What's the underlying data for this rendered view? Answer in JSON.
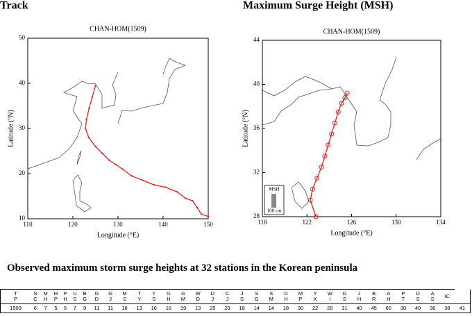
{
  "panels": [
    {
      "type": "track-map",
      "title": "Track",
      "subtitle": "CHAN-HOM(1509)",
      "xlabel": "Longitude (°E)",
      "ylabel": "Latitude (°N)",
      "xlim": [
        110,
        150
      ],
      "ylim": [
        10,
        50
      ],
      "xticks": [
        110,
        120,
        130,
        140,
        150
      ],
      "yticks": [
        10,
        20,
        30,
        40,
        50
      ],
      "marker": "dot",
      "color": "#e02020",
      "track": {
        "lon": [
          150,
          148.5,
          147.5,
          146.5,
          145,
          143,
          140.5,
          138,
          135.5,
          133,
          131,
          129.5,
          128,
          126.5,
          125,
          123.5,
          122.8,
          123,
          123.6,
          124.3,
          125
        ],
        "lat": [
          10.5,
          11,
          12.5,
          14,
          14.5,
          16,
          17,
          17.5,
          18.5,
          19.5,
          21,
          22,
          23,
          24.5,
          26,
          28,
          30,
          32,
          34.5,
          37,
          39.5
        ]
      }
    },
    {
      "type": "track-map",
      "title": "Maximum Surge Height (MSH)",
      "subtitle": "CHAN-HOM(1509)",
      "xlabel": "Longitude (°E)",
      "ylabel": "Latitude (°N)",
      "xlim": [
        118,
        134
      ],
      "ylim": [
        28,
        44
      ],
      "xticks": [
        118,
        122,
        126,
        130,
        134
      ],
      "yticks": [
        28,
        32,
        36,
        40,
        44
      ],
      "marker": "circle",
      "color": "#e02020",
      "track": {
        "lon": [
          122.8,
          122.3,
          122.5,
          122.9,
          123.3,
          123.6,
          123.9,
          124.2,
          124.5,
          124.8,
          125.1,
          125.4,
          125.6
        ],
        "lat": [
          28,
          29.5,
          30.5,
          31.5,
          32.5,
          33.5,
          34.5,
          35.5,
          36.5,
          37.5,
          38.3,
          38.8,
          39.2
        ]
      },
      "legend": {
        "title": "MSH",
        "scale": "100 cm"
      }
    }
  ],
  "table": {
    "title": "Observed maximum storm surge heights at 32 stations in the Korean peninsula",
    "header": [
      "T\nP",
      "S\nC",
      "M\nH",
      "H\nP",
      "P\nH",
      "U\nS",
      "B\nG",
      "G\nD",
      "G\nJ",
      "M\nS",
      "T\nY",
      "Y\nS",
      "G\nH",
      "G\nM",
      "W\nD",
      "D\nJ",
      "C\nJ",
      "J\nS",
      "S\nG",
      "S\nM",
      "D\nH",
      "M\nP",
      "Y\nK",
      "W\nI",
      "G\nS",
      "J\nH",
      "B\nR",
      "A\nH",
      "P\nT",
      "D\nS",
      "A\nS",
      "IC"
    ],
    "rows": [
      [
        1509,
        6,
        7,
        5,
        5,
        7,
        9,
        11,
        11,
        16,
        13,
        16,
        16,
        19,
        13,
        25,
        20,
        18,
        14,
        14,
        18,
        30,
        22,
        28,
        31,
        40,
        45,
        60,
        38,
        40,
        38,
        38,
        41
      ]
    ]
  }
}
